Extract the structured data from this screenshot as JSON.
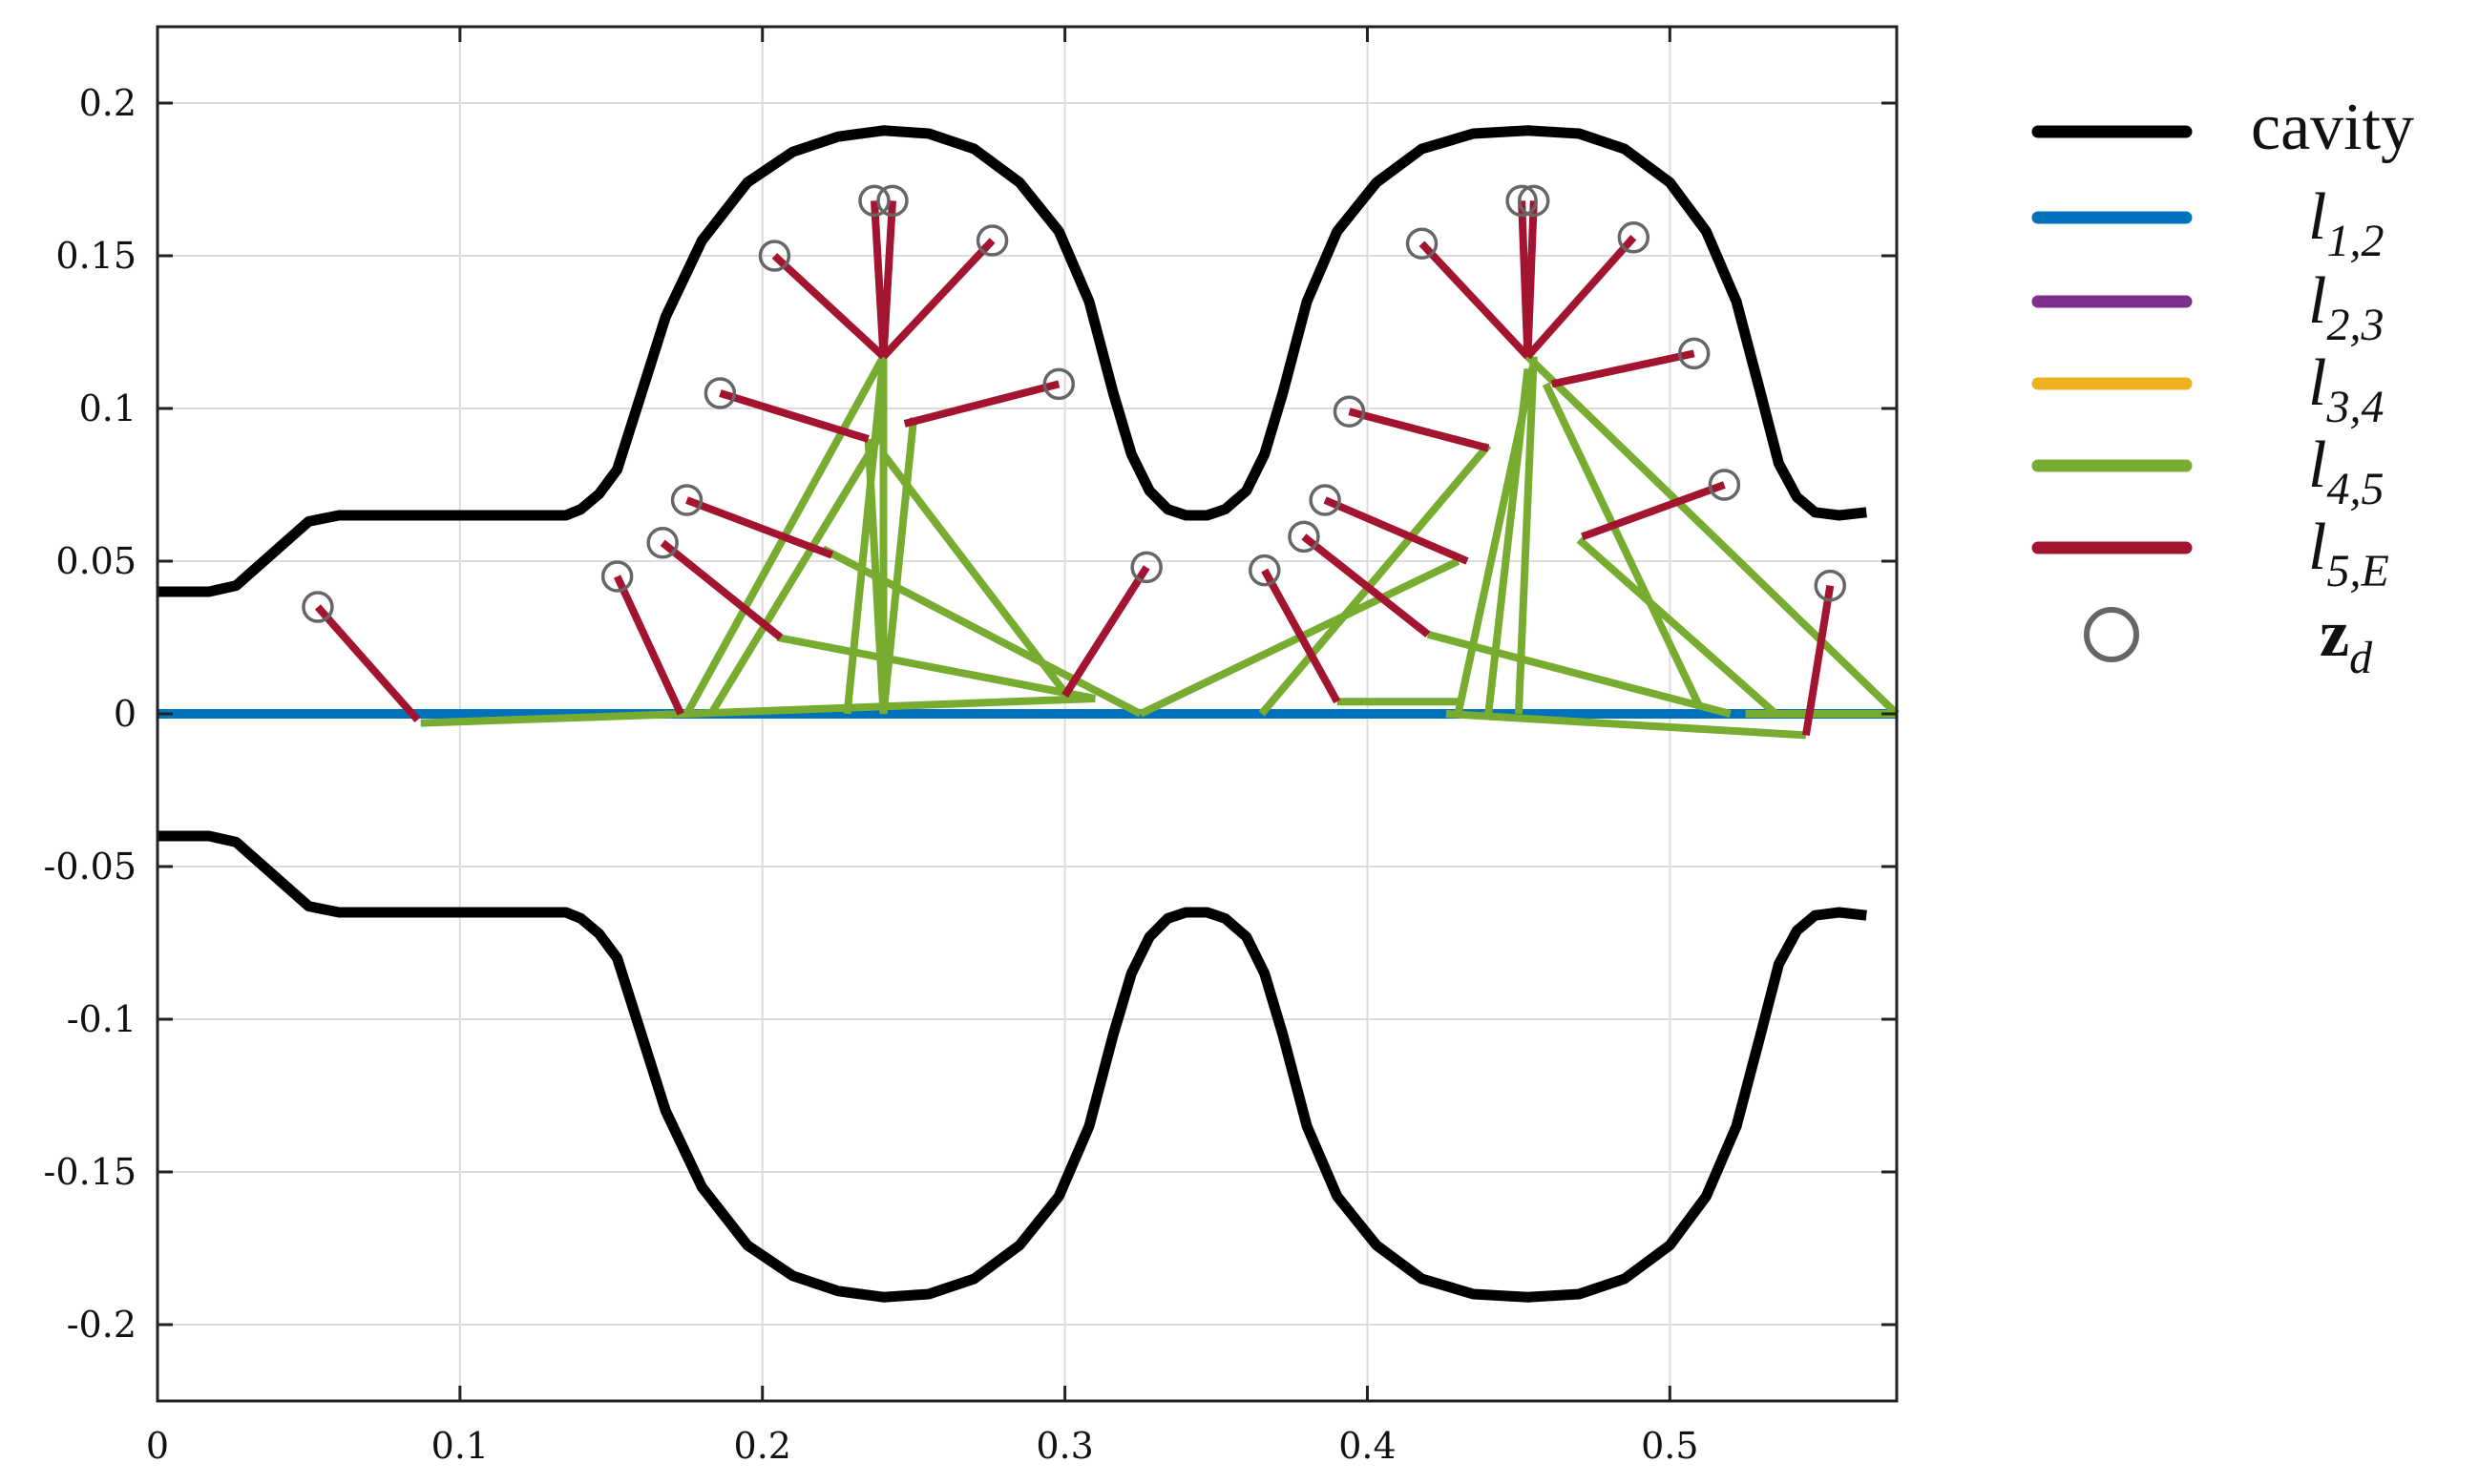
{
  "chart_data": {
    "type": "line",
    "title": "",
    "xlabel": "",
    "ylabel": "",
    "xlim": [
      0,
      0.575
    ],
    "ylim": [
      -0.225,
      0.225
    ],
    "xticks": [
      0,
      0.1,
      0.2,
      0.3,
      0.4,
      0.5
    ],
    "xtick_labels": [
      "0",
      "0.1",
      "0.2",
      "0.3",
      "0.4",
      "0.5"
    ],
    "yticks": [
      0.2,
      0.15,
      0.1,
      0.05,
      0,
      -0.05,
      -0.1,
      -0.15,
      -0.2
    ],
    "ytick_labels": [
      "0.2",
      "0.15",
      "0.1",
      "0.05",
      "0",
      "-0.05",
      "-0.1",
      "-0.15",
      "-0.2"
    ],
    "grid": true,
    "legend_placement": "outside-right",
    "legend": [
      {
        "key": "cavity",
        "base": "cavity",
        "sub": "",
        "italic": false,
        "color": "#000000",
        "marker": "line"
      },
      {
        "key": "l12",
        "base": "l",
        "sub": "1,2",
        "italic": true,
        "color": "#0072BD",
        "marker": "line"
      },
      {
        "key": "l23",
        "base": "l",
        "sub": "2,3",
        "italic": true,
        "color": "#7E2F8E",
        "marker": "line"
      },
      {
        "key": "l34",
        "base": "l",
        "sub": "3,4",
        "italic": true,
        "color": "#EDB120",
        "marker": "line"
      },
      {
        "key": "l45",
        "base": "l",
        "sub": "4,5",
        "italic": true,
        "color": "#77AC30",
        "marker": "line"
      },
      {
        "key": "l5E",
        "base": "l",
        "sub": "5,E",
        "italic": true,
        "color": "#A2142F",
        "marker": "line"
      },
      {
        "key": "zd",
        "base": "z",
        "sub": "d",
        "italic": false,
        "color": "#666666",
        "marker": "circle"
      }
    ],
    "cavity_upper": [
      [
        0,
        0.04
      ],
      [
        0.017,
        0.04
      ],
      [
        0.026,
        0.042
      ],
      [
        0.05,
        0.063
      ],
      [
        0.06,
        0.065
      ],
      [
        0.1,
        0.065
      ],
      [
        0.135,
        0.065
      ],
      [
        0.14,
        0.067
      ],
      [
        0.146,
        0.072
      ],
      [
        0.152,
        0.08
      ],
      [
        0.16,
        0.105
      ],
      [
        0.168,
        0.13
      ],
      [
        0.18,
        0.155
      ],
      [
        0.195,
        0.174
      ],
      [
        0.21,
        0.184
      ],
      [
        0.225,
        0.189
      ],
      [
        0.24,
        0.191
      ],
      [
        0.255,
        0.19
      ],
      [
        0.27,
        0.185
      ],
      [
        0.285,
        0.174
      ],
      [
        0.298,
        0.158
      ],
      [
        0.308,
        0.135
      ],
      [
        0.316,
        0.105
      ],
      [
        0.322,
        0.085
      ],
      [
        0.328,
        0.073
      ],
      [
        0.334,
        0.067
      ],
      [
        0.34,
        0.065
      ],
      [
        0.347,
        0.065
      ],
      [
        0.353,
        0.067
      ],
      [
        0.36,
        0.073
      ],
      [
        0.366,
        0.085
      ],
      [
        0.372,
        0.105
      ],
      [
        0.38,
        0.135
      ],
      [
        0.39,
        0.158
      ],
      [
        0.403,
        0.174
      ],
      [
        0.418,
        0.185
      ],
      [
        0.435,
        0.19
      ],
      [
        0.453,
        0.191
      ],
      [
        0.47,
        0.19
      ],
      [
        0.485,
        0.185
      ],
      [
        0.5,
        0.174
      ],
      [
        0.512,
        0.158
      ],
      [
        0.522,
        0.135
      ],
      [
        0.53,
        0.105
      ],
      [
        0.536,
        0.082
      ],
      [
        0.542,
        0.071
      ],
      [
        0.548,
        0.066
      ],
      [
        0.556,
        0.065
      ],
      [
        0.565,
        0.066
      ]
    ],
    "cavity_lower": [
      [
        0,
        -0.04
      ],
      [
        0.017,
        -0.04
      ],
      [
        0.026,
        -0.042
      ],
      [
        0.05,
        -0.063
      ],
      [
        0.06,
        -0.065
      ],
      [
        0.1,
        -0.065
      ],
      [
        0.135,
        -0.065
      ],
      [
        0.14,
        -0.067
      ],
      [
        0.146,
        -0.072
      ],
      [
        0.152,
        -0.08
      ],
      [
        0.16,
        -0.105
      ],
      [
        0.168,
        -0.13
      ],
      [
        0.18,
        -0.155
      ],
      [
        0.195,
        -0.174
      ],
      [
        0.21,
        -0.184
      ],
      [
        0.225,
        -0.189
      ],
      [
        0.24,
        -0.191
      ],
      [
        0.255,
        -0.19
      ],
      [
        0.27,
        -0.185
      ],
      [
        0.285,
        -0.174
      ],
      [
        0.298,
        -0.158
      ],
      [
        0.308,
        -0.135
      ],
      [
        0.316,
        -0.105
      ],
      [
        0.322,
        -0.085
      ],
      [
        0.328,
        -0.073
      ],
      [
        0.334,
        -0.067
      ],
      [
        0.34,
        -0.065
      ],
      [
        0.347,
        -0.065
      ],
      [
        0.353,
        -0.067
      ],
      [
        0.36,
        -0.073
      ],
      [
        0.366,
        -0.085
      ],
      [
        0.372,
        -0.105
      ],
      [
        0.38,
        -0.135
      ],
      [
        0.39,
        -0.158
      ],
      [
        0.403,
        -0.174
      ],
      [
        0.418,
        -0.185
      ],
      [
        0.435,
        -0.19
      ],
      [
        0.453,
        -0.191
      ],
      [
        0.47,
        -0.19
      ],
      [
        0.485,
        -0.185
      ],
      [
        0.5,
        -0.174
      ],
      [
        0.512,
        -0.158
      ],
      [
        0.522,
        -0.135
      ],
      [
        0.53,
        -0.105
      ],
      [
        0.536,
        -0.082
      ],
      [
        0.542,
        -0.071
      ],
      [
        0.548,
        -0.066
      ],
      [
        0.556,
        -0.065
      ],
      [
        0.565,
        -0.066
      ]
    ],
    "l12": [
      [
        0,
        0
      ],
      [
        0.575,
        0
      ]
    ],
    "l45": [
      [
        [
          0.087,
          -0.003
        ],
        [
          0.175,
          0
        ]
      ],
      [
        [
          0.175,
          0
        ],
        [
          0.31,
          0.005
        ]
      ],
      [
        [
          0.175,
          0
        ],
        [
          0.24,
          0.117
        ]
      ],
      [
        [
          0.24,
          0
        ],
        [
          0.24,
          0.117
        ]
      ],
      [
        [
          0.24,
          0
        ],
        [
          0.235,
          0.09
        ]
      ],
      [
        [
          0.228,
          0
        ],
        [
          0.24,
          0.117
        ]
      ],
      [
        [
          0.183,
          0
        ],
        [
          0.24,
          0.093
        ]
      ],
      [
        [
          0.24,
          0
        ],
        [
          0.25,
          0.097
        ]
      ],
      [
        [
          0.24,
          0.085
        ],
        [
          0.3,
          0.007
        ]
      ],
      [
        [
          0.205,
          0.025
        ],
        [
          0.31,
          0.005
        ]
      ],
      [
        [
          0.22,
          0.054
        ],
        [
          0.325,
          0
        ]
      ],
      [
        [
          0.325,
          0
        ],
        [
          0.43,
          0.05
        ]
      ],
      [
        [
          0.365,
          0
        ],
        [
          0.44,
          0.088
        ]
      ],
      [
        [
          0.39,
          0.004
        ],
        [
          0.43,
          0.004
        ]
      ],
      [
        [
          0.43,
          0
        ],
        [
          0.455,
          0.115
        ]
      ],
      [
        [
          0.45,
          0
        ],
        [
          0.455,
          0.117
        ]
      ],
      [
        [
          0.44,
          0
        ],
        [
          0.453,
          0.113
        ]
      ],
      [
        [
          0.459,
          0.108
        ],
        [
          0.51,
          0.002
        ]
      ],
      [
        [
          0.47,
          0.057
        ],
        [
          0.535,
          0
        ]
      ],
      [
        [
          0.42,
          0.026
        ],
        [
          0.52,
          0
        ]
      ],
      [
        [
          0.453,
          0.117
        ],
        [
          0.575,
          0
        ]
      ],
      [
        [
          0.426,
          0
        ],
        [
          0.545,
          -0.007
        ]
      ],
      [
        [
          0.525,
          0
        ],
        [
          0.575,
          0
        ]
      ]
    ],
    "l5E": [
      [
        [
          0.053,
          0.035
        ],
        [
          0.086,
          -0.002
        ]
      ],
      [
        [
          0.152,
          0.045
        ],
        [
          0.173,
          0
        ]
      ],
      [
        [
          0.167,
          0.056
        ],
        [
          0.206,
          0.025
        ]
      ],
      [
        [
          0.175,
          0.07
        ],
        [
          0.223,
          0.052
        ]
      ],
      [
        [
          0.186,
          0.105
        ],
        [
          0.235,
          0.09
        ]
      ],
      [
        [
          0.204,
          0.15
        ],
        [
          0.24,
          0.117
        ]
      ],
      [
        [
          0.237,
          0.168
        ],
        [
          0.24,
          0.117
        ]
      ],
      [
        [
          0.243,
          0.168
        ],
        [
          0.24,
          0.117
        ]
      ],
      [
        [
          0.276,
          0.155
        ],
        [
          0.24,
          0.117
        ]
      ],
      [
        [
          0.298,
          0.108
        ],
        [
          0.247,
          0.095
        ]
      ],
      [
        [
          0.327,
          0.048
        ],
        [
          0.3,
          0.006
        ]
      ],
      [
        [
          0.366,
          0.047
        ],
        [
          0.39,
          0.004
        ]
      ],
      [
        [
          0.379,
          0.058
        ],
        [
          0.42,
          0.026
        ]
      ],
      [
        [
          0.386,
          0.07
        ],
        [
          0.433,
          0.05
        ]
      ],
      [
        [
          0.394,
          0.099
        ],
        [
          0.44,
          0.087
        ]
      ],
      [
        [
          0.418,
          0.154
        ],
        [
          0.453,
          0.117
        ]
      ],
      [
        [
          0.451,
          0.168
        ],
        [
          0.453,
          0.117
        ]
      ],
      [
        [
          0.455,
          0.168
        ],
        [
          0.453,
          0.117
        ]
      ],
      [
        [
          0.488,
          0.156
        ],
        [
          0.453,
          0.117
        ]
      ],
      [
        [
          0.508,
          0.118
        ],
        [
          0.461,
          0.108
        ]
      ],
      [
        [
          0.518,
          0.075
        ],
        [
          0.471,
          0.058
        ]
      ],
      [
        [
          0.553,
          0.042
        ],
        [
          0.545,
          -0.007
        ]
      ]
    ],
    "zd": [
      [
        0.053,
        0.035
      ],
      [
        0.152,
        0.045
      ],
      [
        0.167,
        0.056
      ],
      [
        0.175,
        0.07
      ],
      [
        0.186,
        0.105
      ],
      [
        0.204,
        0.15
      ],
      [
        0.237,
        0.168
      ],
      [
        0.243,
        0.168
      ],
      [
        0.276,
        0.155
      ],
      [
        0.298,
        0.108
      ],
      [
        0.327,
        0.048
      ],
      [
        0.366,
        0.047
      ],
      [
        0.379,
        0.058
      ],
      [
        0.386,
        0.07
      ],
      [
        0.394,
        0.099
      ],
      [
        0.418,
        0.154
      ],
      [
        0.451,
        0.168
      ],
      [
        0.455,
        0.168
      ],
      [
        0.488,
        0.156
      ],
      [
        0.508,
        0.118
      ],
      [
        0.518,
        0.075
      ],
      [
        0.553,
        0.042
      ]
    ]
  }
}
